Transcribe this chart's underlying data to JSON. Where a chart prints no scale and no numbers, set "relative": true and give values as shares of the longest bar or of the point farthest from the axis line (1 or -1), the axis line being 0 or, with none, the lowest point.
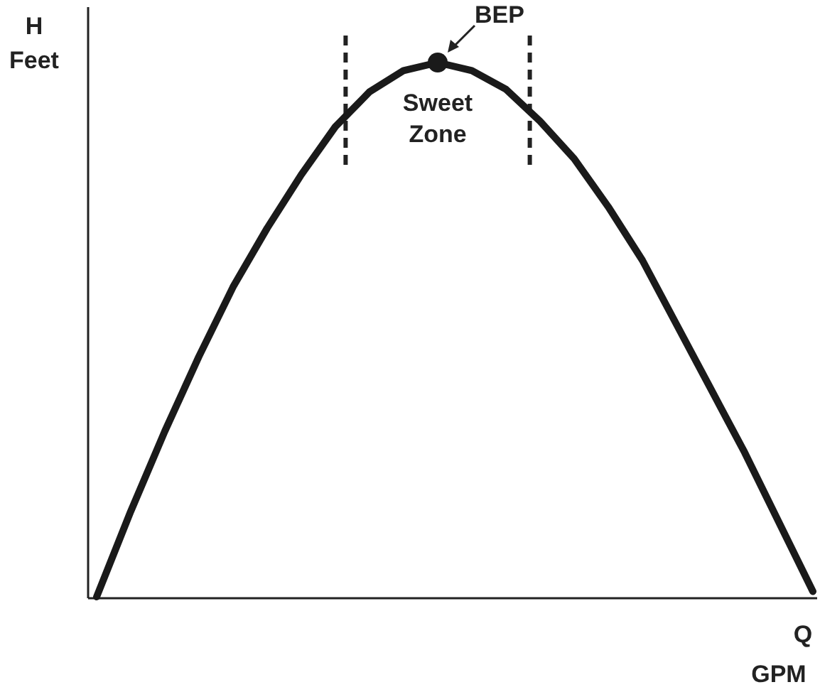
{
  "chart_data": {
    "type": "line",
    "relative": true,
    "xlabel": "Q\nGPM",
    "ylabel": "H\nFeet",
    "categories": [
      null,
      null,
      null,
      null,
      null,
      null,
      null,
      null,
      null,
      null,
      null,
      null,
      null,
      null,
      null,
      null,
      null,
      null,
      null,
      null,
      null,
      null
    ],
    "series": [
      {
        "color": "#1a1a1a",
        "marker": "none",
        "values": [
          0,
          0.16,
          0.31,
          0.45,
          0.58,
          0.69,
          0.79,
          0.88,
          0.945,
          0.985,
          1,
          0.985,
          0.95,
          0.89,
          0.82,
          0.73,
          0.63,
          0.51,
          0.39,
          0.27,
          0.14,
          0.01
        ]
      }
    ],
    "annotations": [
      "BEP",
      "Sweet Zone"
    ]
  }
}
